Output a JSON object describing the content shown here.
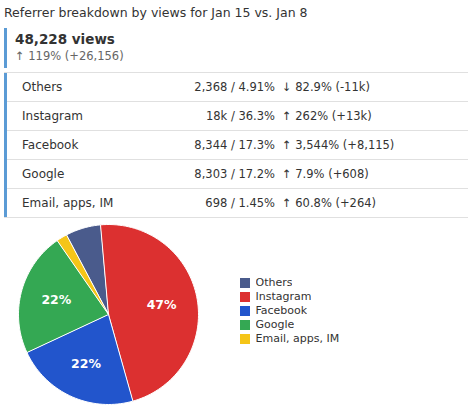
{
  "chart_data": {
    "type": "pie",
    "title": "Referrer breakdown by views for Jan 15 vs. Jan 8",
    "annotations": [
      "48,228 views",
      "↑ 119% (+26,156)"
    ],
    "table": [
      [
        "Others",
        "2,368 / 4.91%",
        "↓ 82.9% (-11k)"
      ],
      [
        "Instagram",
        "18k / 36.3%",
        "↑ 262% (+13k)"
      ],
      [
        "Facebook",
        "8,344 / 17.3%",
        "↑ 3,544% (+8,115)"
      ],
      [
        "Google",
        "8,303 / 17.2%",
        "↑ 7.9% (+608)"
      ],
      [
        "Email, apps, IM",
        "698 / 1.45%",
        "↑ 60.8% (+264)"
      ]
    ],
    "categories": [
      "Others",
      "Instagram",
      "Facebook",
      "Google",
      "Email, apps, IM"
    ],
    "values": [
      4.91,
      36.3,
      17.3,
      17.2,
      1.45
    ],
    "value_labels": [
      null,
      "47%",
      "22%",
      "22%",
      null
    ],
    "colors": [
      "#4a5b8c",
      "#dc3030",
      "#2255cc",
      "#34a853",
      "#f5c518"
    ],
    "data_labels": true,
    "legend": "right"
  }
}
